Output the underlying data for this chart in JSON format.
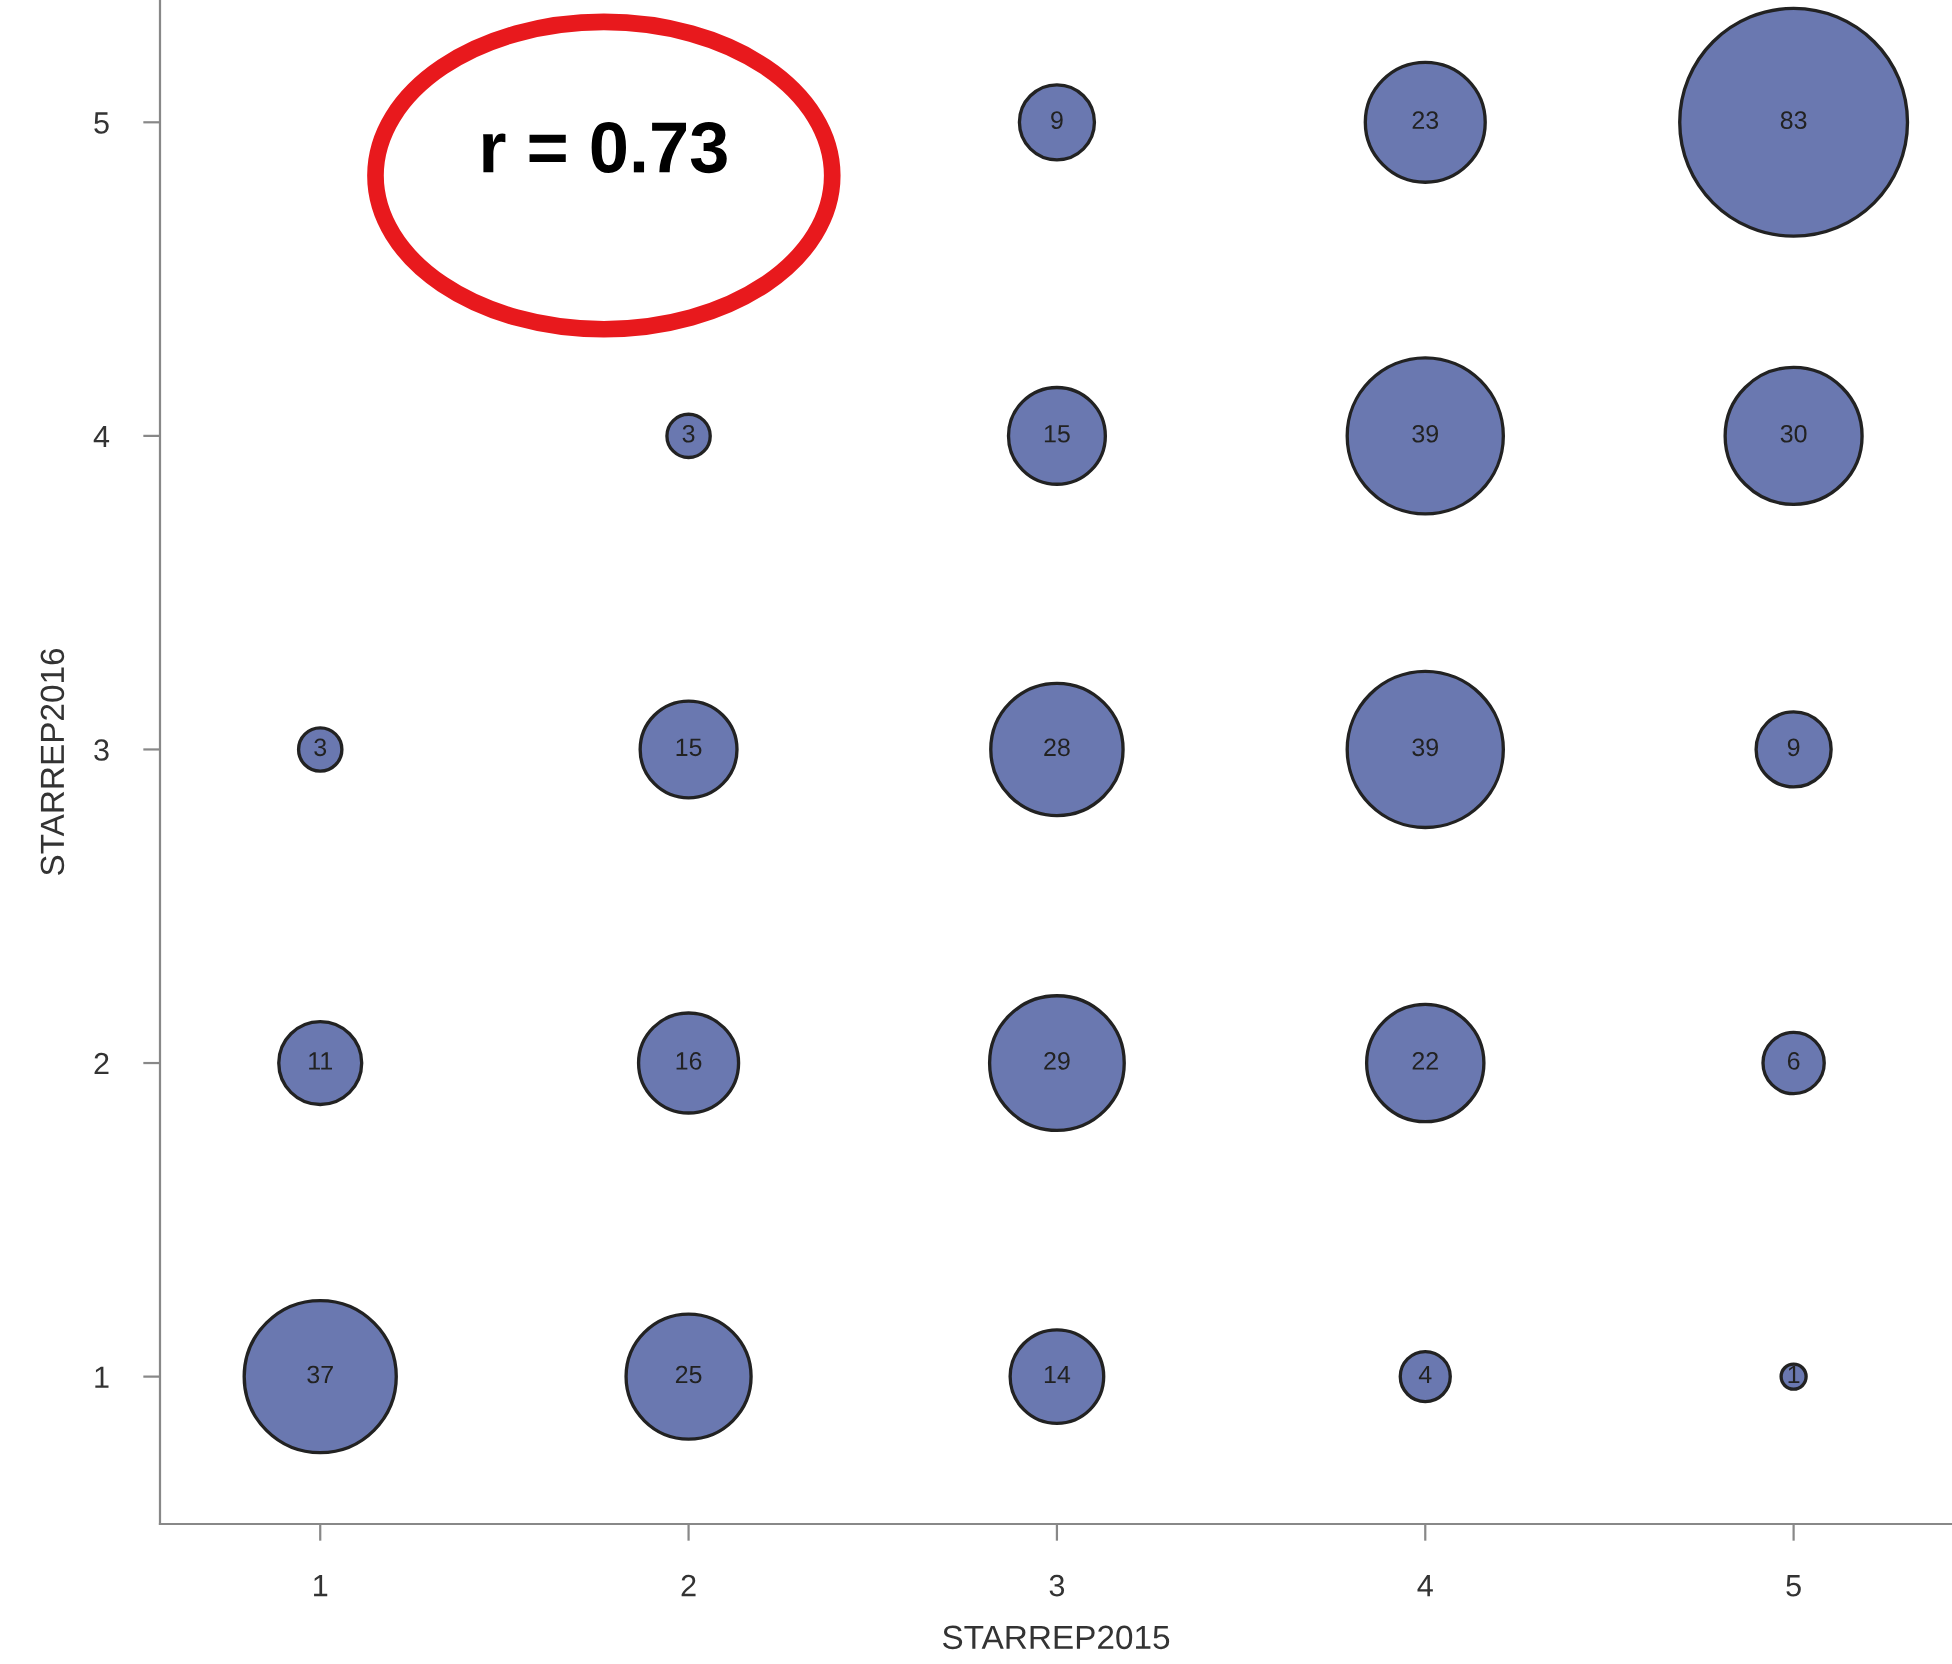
{
  "chart_data": {
    "type": "bubble",
    "xlabel": "STARREP2015",
    "ylabel": "STARREP2016",
    "annotations": [
      "r = 0.73"
    ],
    "series": [
      {
        "color": "#6a78b0",
        "x": [
          3,
          4,
          5,
          2,
          3,
          4,
          5,
          1,
          2,
          3,
          4,
          5,
          1,
          2,
          3,
          4,
          5,
          1,
          2,
          3,
          4,
          5
        ],
        "values": [
          5,
          5,
          5,
          4,
          4,
          4,
          4,
          3,
          3,
          3,
          3,
          3,
          2,
          2,
          2,
          2,
          2,
          1,
          1,
          1,
          1,
          1
        ],
        "sizes": [
          9,
          23,
          83,
          3,
          15,
          39,
          30,
          3,
          15,
          28,
          39,
          9,
          11,
          16,
          29,
          22,
          6,
          37,
          25,
          14,
          4,
          1
        ],
        "value_labels": [
          "9",
          "23",
          "83",
          "3",
          "15",
          "39",
          "30",
          "3",
          "15",
          "28",
          "39",
          "9",
          "11",
          "16",
          "29",
          "22",
          "6",
          "37",
          "25",
          "14",
          "4",
          "1"
        ]
      }
    ],
    "xlim": [
      0.565,
      5.43
    ],
    "ylim": [
      0.53,
      5.39
    ],
    "xticks": [
      1,
      2,
      3,
      4,
      5
    ],
    "yticks": [
      1,
      2,
      3,
      4,
      5
    ],
    "grid": false,
    "legend": false
  }
}
